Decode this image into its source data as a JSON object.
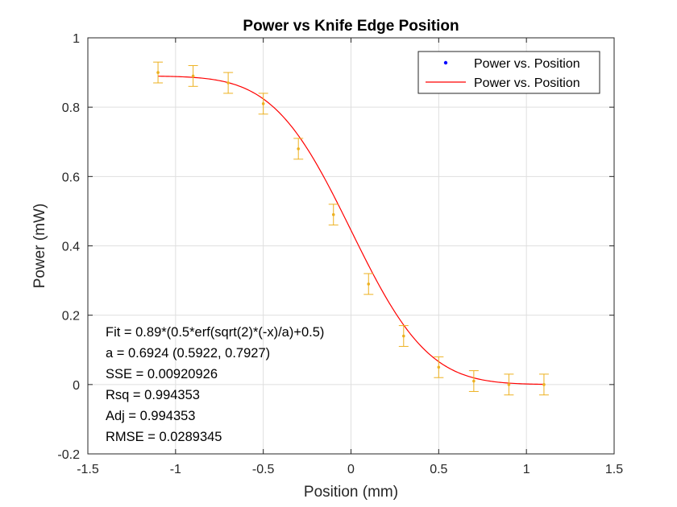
{
  "chart_data": {
    "type": "scatter",
    "title": "Power vs Knife Edge Position",
    "xlabel": "Position (mm)",
    "ylabel": "Power (mW)",
    "xlim": [
      -1.5,
      1.5
    ],
    "ylim": [
      -0.2,
      1
    ],
    "xticks": [
      -1.5,
      -1,
      -0.5,
      0,
      0.5,
      1,
      1.5
    ],
    "xtick_labels": [
      "-1.5",
      "-1",
      "-0.5",
      "0",
      "0.5",
      "1",
      "1.5"
    ],
    "yticks": [
      -0.2,
      0,
      0.2,
      0.4,
      0.6,
      0.8,
      1
    ],
    "ytick_labels": [
      "-0.2",
      "0",
      "0.2",
      "0.4",
      "0.6",
      "0.8",
      "1"
    ],
    "grid": true,
    "legend_position": "top-right",
    "series": [
      {
        "name": "Power vs. Position",
        "kind": "points-with-errorbars",
        "color": "#EDB120",
        "legend_marker_color": "#0000FF",
        "x": [
          -1.1,
          -0.9,
          -0.7,
          -0.5,
          -0.3,
          -0.1,
          0.1,
          0.3,
          0.5,
          0.7,
          0.9,
          1.1
        ],
        "y": [
          0.9,
          0.89,
          0.87,
          0.81,
          0.68,
          0.49,
          0.29,
          0.14,
          0.05,
          0.01,
          0.0,
          0.0
        ],
        "error": 0.03
      },
      {
        "name": "Power vs. Position",
        "kind": "fit-line",
        "color": "#FF0000",
        "A": 0.89,
        "a": 0.6924,
        "x_range": [
          -1.1,
          1.1
        ]
      }
    ],
    "annotations": [
      "Fit = 0.89*(0.5*erf(sqrt(2)*(-x)/a)+0.5)",
      "a = 0.6924 (0.5922, 0.7927)",
      "SSE = 0.00920926",
      "Rsq = 0.994353",
      "Adj = 0.994353",
      "RMSE = 0.0289345"
    ]
  }
}
